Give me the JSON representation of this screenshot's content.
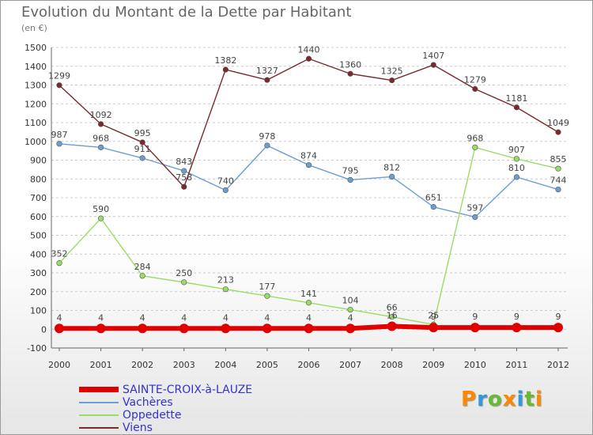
{
  "header": {
    "title": "Evolution du Montant de la Dette par Habitant",
    "subtitle": "(en €)"
  },
  "branding": {
    "logo_text": "Proxiti"
  },
  "chart_data": {
    "type": "line",
    "x": [
      2000,
      2001,
      2002,
      2003,
      2004,
      2005,
      2006,
      2007,
      2008,
      2009,
      2010,
      2011,
      2012
    ],
    "ylim": [
      -100,
      1500
    ],
    "yticks": [
      -100,
      0,
      100,
      200,
      300,
      400,
      500,
      600,
      700,
      800,
      900,
      1000,
      1100,
      1200,
      1300,
      1400,
      1500
    ],
    "grid": "horizontal dashed",
    "legend_position": "bottom-left",
    "series": [
      {
        "name": "SAINTE-CROIX-à-LAUZE",
        "color": "#e00000",
        "values": [
          4,
          4,
          4,
          4,
          4,
          4,
          4,
          4,
          16,
          9,
          9,
          9,
          9
        ],
        "labels": [
          "4",
          "4",
          "4",
          "4",
          "4",
          "4",
          "4",
          "4",
          "16",
          "9",
          "9",
          "9",
          "9"
        ]
      },
      {
        "name": "Vachères",
        "color": "#6b9fd1",
        "values": [
          987,
          968,
          911,
          843,
          740,
          978,
          874,
          795,
          812,
          651,
          597,
          810,
          744
        ],
        "labels": [
          "987",
          "968",
          "911",
          "843",
          "740",
          "978",
          "874",
          "795",
          "812",
          "651",
          "597",
          "810",
          "744"
        ]
      },
      {
        "name": "Oppedette",
        "color": "#99dd66",
        "values": [
          352,
          590,
          284,
          250,
          213,
          177,
          141,
          104,
          66,
          25,
          968,
          907,
          855
        ],
        "labels": [
          "352",
          "590",
          "284",
          "250",
          "213",
          "177",
          "141",
          "104",
          "66",
          "25",
          "968",
          "907",
          "855"
        ]
      },
      {
        "name": "Viens",
        "color": "#7a2a2a",
        "values": [
          1299,
          1092,
          995,
          758,
          1382,
          1327,
          1440,
          1360,
          1325,
          1407,
          1279,
          1181,
          1049
        ],
        "labels": [
          "1299",
          "1092",
          "995",
          "758",
          "1382",
          "1327",
          "1440",
          "1360",
          "1325",
          "1407",
          "1279",
          "1181",
          "1049"
        ]
      }
    ]
  }
}
